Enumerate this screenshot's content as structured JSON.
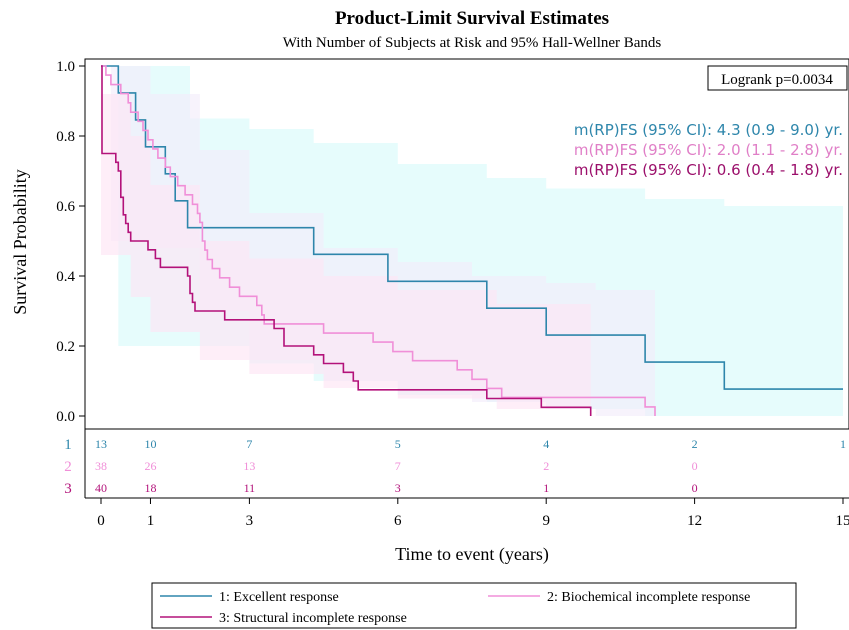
{
  "chart_data": {
    "type": "line",
    "title": "Product-Limit Survival Estimates",
    "subtitle": "With Number of Subjects at Risk and 95% Hall-Wellner Bands",
    "xlabel": "Time to event (years)",
    "ylabel": "Survival Probability",
    "xlim": [
      0,
      15
    ],
    "ylim": [
      0,
      1
    ],
    "x_ticks": [
      "0",
      "1",
      "3",
      "6",
      "9",
      "12",
      "15"
    ],
    "x_tick_values": [
      0,
      1,
      3,
      6,
      9,
      12,
      15
    ],
    "y_ticks": [
      "0.0",
      "0.2",
      "0.4",
      "0.6",
      "0.8",
      "1.0"
    ],
    "y_tick_values": [
      0,
      0.2,
      0.4,
      0.6,
      0.8,
      1.0
    ],
    "logrank": "Logrank p=0.0034",
    "annotations": [
      {
        "text": "m(RP)FS (95% CI): 4.3 (0.9 - 9.0) yr.",
        "color": "#2e86ab"
      },
      {
        "text": "m(RP)FS (95% CI): 2.0 (1.1 - 2.8) yr.",
        "color": "#e07fc7"
      },
      {
        "text": "m(RP)FS (95% CI): 0.6 (0.4 - 1.8) yr.",
        "color": "#9b0f6b"
      }
    ],
    "risk_times": [
      0,
      1,
      3,
      6,
      9,
      12,
      15
    ],
    "series": [
      {
        "name": "1: Excellent response",
        "risk_label": "1",
        "color": "#2e86ab",
        "band_color": "#d9fbfb",
        "at_risk": [
          "13",
          "10",
          "7",
          "5",
          "4",
          "2",
          "1"
        ],
        "steps": [
          [
            0,
            1.0
          ],
          [
            0.35,
            0.923
          ],
          [
            0.7,
            0.846
          ],
          [
            0.9,
            0.769
          ],
          [
            1.3,
            0.692
          ],
          [
            1.5,
            0.615
          ],
          [
            1.75,
            0.538
          ],
          [
            4.3,
            0.462
          ],
          [
            5.8,
            0.385
          ],
          [
            7.8,
            0.308
          ],
          [
            9.0,
            0.231
          ],
          [
            11.0,
            0.154
          ],
          [
            12.6,
            0.077
          ],
          [
            15.0,
            0.077
          ]
        ],
        "band": {
          "t": [
            0.35,
            0.9,
            1.8,
            3.0,
            4.3,
            6.0,
            7.8,
            9.0,
            11.0,
            12.6,
            15.0
          ],
          "upper": [
            1.0,
            1.0,
            0.85,
            0.82,
            0.78,
            0.72,
            0.68,
            0.65,
            0.62,
            0.6,
            0.6
          ],
          "lower": [
            0.2,
            0.2,
            0.2,
            0.15,
            0.1,
            0.06,
            0.04,
            0.02,
            0.0,
            0.0,
            0.0
          ]
        }
      },
      {
        "name": "2: Biochemical incomplete response",
        "risk_label": "2",
        "color": "#f08fd8",
        "band_color": "#f3ecfa",
        "at_risk": [
          "38",
          "26",
          "13",
          "7",
          "2",
          "0",
          ""
        ],
        "steps": [
          [
            0,
            1.0
          ],
          [
            0.1,
            0.974
          ],
          [
            0.2,
            0.947
          ],
          [
            0.4,
            0.921
          ],
          [
            0.55,
            0.895
          ],
          [
            0.6,
            0.868
          ],
          [
            0.75,
            0.842
          ],
          [
            0.85,
            0.816
          ],
          [
            0.95,
            0.789
          ],
          [
            1.05,
            0.763
          ],
          [
            1.15,
            0.737
          ],
          [
            1.3,
            0.711
          ],
          [
            1.4,
            0.684
          ],
          [
            1.55,
            0.658
          ],
          [
            1.7,
            0.632
          ],
          [
            1.85,
            0.605
          ],
          [
            1.95,
            0.579
          ],
          [
            2.0,
            0.553
          ],
          [
            2.05,
            0.5
          ],
          [
            2.1,
            0.474
          ],
          [
            2.15,
            0.447
          ],
          [
            2.25,
            0.421
          ],
          [
            2.4,
            0.395
          ],
          [
            2.6,
            0.368
          ],
          [
            2.8,
            0.342
          ],
          [
            3.15,
            0.316
          ],
          [
            3.25,
            0.289
          ],
          [
            3.3,
            0.263
          ],
          [
            4.5,
            0.237
          ],
          [
            5.5,
            0.211
          ],
          [
            5.9,
            0.184
          ],
          [
            6.3,
            0.158
          ],
          [
            7.2,
            0.132
          ],
          [
            7.5,
            0.105
          ],
          [
            7.8,
            0.079
          ],
          [
            8.1,
            0.053
          ],
          [
            11.0,
            0.026
          ],
          [
            11.2,
            0.0
          ]
        ],
        "band": {
          "t": [
            0.2,
            1.0,
            2.0,
            3.0,
            4.5,
            6.0,
            7.5,
            9.0,
            10.0,
            11.2
          ],
          "upper": [
            1.0,
            0.92,
            0.76,
            0.58,
            0.48,
            0.44,
            0.4,
            0.38,
            0.36,
            0.36
          ],
          "lower": [
            0.5,
            0.48,
            0.3,
            0.16,
            0.1,
            0.07,
            0.04,
            0.02,
            0.0,
            0.0
          ]
        }
      },
      {
        "name": "3: Structural incomplete response",
        "risk_label": "3",
        "color": "#b3127a",
        "band_color": "#fde5f5",
        "at_risk": [
          "40",
          "18",
          "11",
          "3",
          "1",
          "0",
          ""
        ],
        "steps": [
          [
            0,
            1.0
          ],
          [
            0.02,
            0.75
          ],
          [
            0.3,
            0.725
          ],
          [
            0.35,
            0.7
          ],
          [
            0.4,
            0.625
          ],
          [
            0.45,
            0.575
          ],
          [
            0.5,
            0.55
          ],
          [
            0.55,
            0.525
          ],
          [
            0.6,
            0.5
          ],
          [
            0.95,
            0.475
          ],
          [
            1.1,
            0.45
          ],
          [
            1.2,
            0.425
          ],
          [
            1.75,
            0.4
          ],
          [
            1.8,
            0.35
          ],
          [
            1.85,
            0.325
          ],
          [
            1.9,
            0.3
          ],
          [
            2.5,
            0.275
          ],
          [
            3.5,
            0.25
          ],
          [
            3.7,
            0.2
          ],
          [
            4.3,
            0.175
          ],
          [
            4.5,
            0.15
          ],
          [
            4.9,
            0.125
          ],
          [
            5.1,
            0.1
          ],
          [
            5.2,
            0.075
          ],
          [
            7.8,
            0.05
          ],
          [
            8.9,
            0.025
          ],
          [
            9.9,
            0.0
          ]
        ],
        "band": {
          "t": [
            0.0,
            0.6,
            1.0,
            2.0,
            3.0,
            4.5,
            6.0,
            8.0,
            9.9
          ],
          "upper": [
            0.92,
            0.8,
            0.66,
            0.5,
            0.45,
            0.4,
            0.36,
            0.32,
            0.3
          ],
          "lower": [
            0.46,
            0.34,
            0.24,
            0.16,
            0.12,
            0.08,
            0.05,
            0.02,
            0.0
          ]
        }
      }
    ],
    "legend_position": "bottom"
  }
}
